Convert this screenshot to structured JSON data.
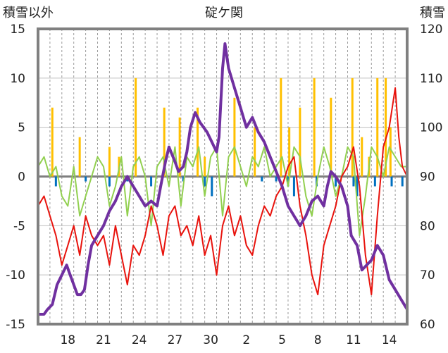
{
  "chart_data": {
    "type": "line",
    "title": "碇ケ関",
    "ylabel_left": "積雪以外",
    "ylabel_right": "積雪",
    "ylim_left": [
      -15,
      15
    ],
    "ylim_right": [
      60,
      120
    ],
    "yticks_left": [
      "15",
      "10",
      "5",
      "0",
      "-5",
      "-10",
      "-15"
    ],
    "yticks_right": [
      "120",
      "110",
      "100",
      "90",
      "80",
      "70",
      "60"
    ],
    "x_tick_labels": [
      "18",
      "21",
      "24",
      "27",
      "30",
      "2",
      "5",
      "8",
      "11",
      "14"
    ],
    "x_tick_days": [
      2.5,
      5.5,
      8.5,
      11.5,
      14.5,
      17.5,
      20.5,
      23.5,
      26.5,
      29.5
    ],
    "x_range_days": [
      0,
      31
    ],
    "grid": true,
    "colors": {
      "snow_depth": "#7030a0",
      "temperature": "#e8130d",
      "temp_change": "#92d050",
      "snowfall": "#ffc000",
      "precip": "#0070c0",
      "zero_line": "#7f7f7f",
      "frame": "#808080"
    },
    "series": [
      {
        "key": "snow_depth",
        "axis": "right",
        "points": [
          [
            0,
            62
          ],
          [
            0.5,
            62
          ],
          [
            0.8,
            63
          ],
          [
            1.2,
            64
          ],
          [
            1.6,
            68
          ],
          [
            2,
            70
          ],
          [
            2.4,
            72
          ],
          [
            2.7,
            70
          ],
          [
            3.0,
            68
          ],
          [
            3.3,
            66
          ],
          [
            3.6,
            66
          ],
          [
            3.9,
            67
          ],
          [
            4.2,
            72
          ],
          [
            4.5,
            76
          ],
          [
            5,
            78
          ],
          [
            5.5,
            80
          ],
          [
            6,
            83
          ],
          [
            6.5,
            85
          ],
          [
            7,
            88
          ],
          [
            7.5,
            90
          ],
          [
            8,
            88
          ],
          [
            8.5,
            86
          ],
          [
            9,
            84
          ],
          [
            9.5,
            85
          ],
          [
            10,
            84
          ],
          [
            10.3,
            88
          ],
          [
            10.7,
            93
          ],
          [
            11,
            96
          ],
          [
            11.5,
            93
          ],
          [
            11.8,
            91
          ],
          [
            12.2,
            92
          ],
          [
            12.5,
            95
          ],
          [
            12.8,
            100
          ],
          [
            13.2,
            103
          ],
          [
            13.6,
            101
          ],
          [
            14.2,
            99
          ],
          [
            14.6,
            97
          ],
          [
            15.0,
            95
          ],
          [
            15.2,
            98
          ],
          [
            15.5,
            112
          ],
          [
            15.7,
            117
          ],
          [
            16.0,
            112
          ],
          [
            16.5,
            108
          ],
          [
            17.0,
            104
          ],
          [
            17.5,
            100
          ],
          [
            18,
            102
          ],
          [
            18.5,
            99
          ],
          [
            19,
            97
          ],
          [
            19.5,
            94
          ],
          [
            20,
            91
          ],
          [
            20.5,
            88
          ],
          [
            21,
            84
          ],
          [
            21.5,
            82
          ],
          [
            22,
            80
          ],
          [
            22.5,
            82
          ],
          [
            23,
            85
          ],
          [
            23.5,
            86
          ],
          [
            24,
            84
          ],
          [
            24.3,
            88
          ],
          [
            24.6,
            91
          ],
          [
            25,
            90
          ],
          [
            25.5,
            88
          ],
          [
            26,
            84
          ],
          [
            26.3,
            78
          ],
          [
            26.8,
            76
          ],
          [
            27.2,
            71
          ],
          [
            27.6,
            72
          ],
          [
            28,
            73
          ],
          [
            28.5,
            76
          ],
          [
            29,
            74
          ],
          [
            29.5,
            69
          ],
          [
            30,
            67
          ],
          [
            30.5,
            65
          ],
          [
            31,
            63
          ]
        ]
      },
      {
        "key": "temperature",
        "axis": "left",
        "points": [
          [
            0,
            -3
          ],
          [
            0.5,
            -2
          ],
          [
            1,
            -4
          ],
          [
            1.5,
            -6
          ],
          [
            2,
            -9
          ],
          [
            2.5,
            -7
          ],
          [
            3,
            -5
          ],
          [
            3.5,
            -8
          ],
          [
            4,
            -4
          ],
          [
            4.5,
            -6
          ],
          [
            5,
            -7
          ],
          [
            5.5,
            -6
          ],
          [
            6,
            -9
          ],
          [
            6.5,
            -5
          ],
          [
            7,
            -8
          ],
          [
            7.5,
            -11
          ],
          [
            8,
            -7
          ],
          [
            8.5,
            -8
          ],
          [
            9,
            -6
          ],
          [
            9.5,
            -3
          ],
          [
            10,
            -5
          ],
          [
            10.5,
            -8
          ],
          [
            11,
            -4
          ],
          [
            11.5,
            -3
          ],
          [
            12,
            -6
          ],
          [
            12.5,
            -5
          ],
          [
            13,
            -7
          ],
          [
            13.5,
            -4
          ],
          [
            14,
            -8
          ],
          [
            14.5,
            -6
          ],
          [
            15,
            -10
          ],
          [
            15.5,
            -5
          ],
          [
            16,
            -3
          ],
          [
            16.5,
            -6
          ],
          [
            17,
            -4
          ],
          [
            17.5,
            -7
          ],
          [
            18,
            -8
          ],
          [
            18.5,
            -5
          ],
          [
            19,
            -3
          ],
          [
            19.5,
            -4
          ],
          [
            20,
            -2
          ],
          [
            20.5,
            -1
          ],
          [
            21,
            1
          ],
          [
            21.5,
            2
          ],
          [
            22,
            -3
          ],
          [
            22.5,
            -6
          ],
          [
            23,
            -10
          ],
          [
            23.5,
            -12
          ],
          [
            24,
            -7
          ],
          [
            24.5,
            -5
          ],
          [
            25,
            -3
          ],
          [
            25.5,
            0
          ],
          [
            26,
            1
          ],
          [
            26.5,
            3
          ],
          [
            27,
            -1
          ],
          [
            27.5,
            -8
          ],
          [
            28,
            -12
          ],
          [
            28.5,
            -4
          ],
          [
            29,
            3
          ],
          [
            29.5,
            5
          ],
          [
            30,
            9
          ],
          [
            30.3,
            4
          ],
          [
            30.6,
            1
          ],
          [
            31,
            0
          ]
        ]
      },
      {
        "key": "temp_change",
        "axis": "left",
        "points": [
          [
            0,
            1
          ],
          [
            0.5,
            2
          ],
          [
            1,
            0
          ],
          [
            1.5,
            1
          ],
          [
            2,
            -2
          ],
          [
            2.5,
            -3
          ],
          [
            3,
            1
          ],
          [
            3.5,
            -4
          ],
          [
            4,
            -2
          ],
          [
            4.5,
            0
          ],
          [
            5,
            2
          ],
          [
            5.5,
            1
          ],
          [
            6,
            -3
          ],
          [
            6.5,
            -1
          ],
          [
            7,
            2
          ],
          [
            7.5,
            -4
          ],
          [
            8,
            1
          ],
          [
            8.5,
            2
          ],
          [
            9,
            0
          ],
          [
            9.5,
            -5
          ],
          [
            10,
            1
          ],
          [
            10.5,
            2
          ],
          [
            11,
            -1
          ],
          [
            11.5,
            3
          ],
          [
            12,
            -3
          ],
          [
            12.5,
            2
          ],
          [
            13,
            1
          ],
          [
            13.5,
            3
          ],
          [
            14,
            -2
          ],
          [
            14.5,
            2
          ],
          [
            15,
            3
          ],
          [
            15.5,
            -4
          ],
          [
            16,
            2
          ],
          [
            16.5,
            3
          ],
          [
            17,
            1
          ],
          [
            17.5,
            -1
          ],
          [
            18,
            2
          ],
          [
            18.5,
            1
          ],
          [
            19,
            3
          ],
          [
            19.5,
            0
          ],
          [
            20,
            1
          ],
          [
            20.5,
            2
          ],
          [
            21,
            -1
          ],
          [
            21.5,
            3
          ],
          [
            22,
            2
          ],
          [
            22.5,
            -2
          ],
          [
            23,
            -4
          ],
          [
            23.5,
            0
          ],
          [
            24,
            3
          ],
          [
            24.5,
            1
          ],
          [
            25,
            -2
          ],
          [
            25.5,
            0
          ],
          [
            26,
            3
          ],
          [
            26.5,
            2
          ],
          [
            27,
            -6
          ],
          [
            27.5,
            -2
          ],
          [
            28,
            3
          ],
          [
            28.5,
            2
          ],
          [
            29,
            0
          ],
          [
            29.5,
            3
          ],
          [
            30,
            2
          ],
          [
            30.5,
            1
          ],
          [
            31,
            1
          ]
        ]
      }
    ],
    "bar_series": [
      {
        "key": "snowfall",
        "axis": "left",
        "bars": [
          [
            1.2,
            7
          ],
          [
            3.5,
            4
          ],
          [
            6.0,
            3
          ],
          [
            6.8,
            2
          ],
          [
            8.2,
            10
          ],
          [
            10.6,
            7
          ],
          [
            11.9,
            6
          ],
          [
            13.4,
            7
          ],
          [
            14.0,
            2
          ],
          [
            16.5,
            8
          ],
          [
            18.2,
            5
          ],
          [
            20.4,
            10
          ],
          [
            21.1,
            5
          ],
          [
            22.0,
            7
          ],
          [
            23.2,
            10
          ],
          [
            24.6,
            8
          ],
          [
            26.4,
            10
          ],
          [
            27.2,
            4
          ],
          [
            27.8,
            2
          ],
          [
            28.5,
            10
          ],
          [
            29.2,
            10
          ],
          [
            29.6,
            5
          ]
        ]
      },
      {
        "key": "precip",
        "axis": "left",
        "bars": [
          [
            1.5,
            -1
          ],
          [
            4.0,
            -0.5
          ],
          [
            6.0,
            -1
          ],
          [
            7.5,
            -0.5
          ],
          [
            9.5,
            -1
          ],
          [
            12.2,
            -0.5
          ],
          [
            14.0,
            -1
          ],
          [
            14.6,
            -2
          ],
          [
            18.8,
            -0.5
          ],
          [
            20.0,
            -0.5
          ],
          [
            21.0,
            -1
          ],
          [
            21.5,
            -2
          ],
          [
            23.4,
            -1
          ],
          [
            25.0,
            -1
          ],
          [
            26.5,
            -1
          ],
          [
            26.8,
            -2
          ],
          [
            28.3,
            -1
          ],
          [
            29.7,
            -1
          ],
          [
            30.6,
            -1
          ]
        ]
      }
    ]
  }
}
